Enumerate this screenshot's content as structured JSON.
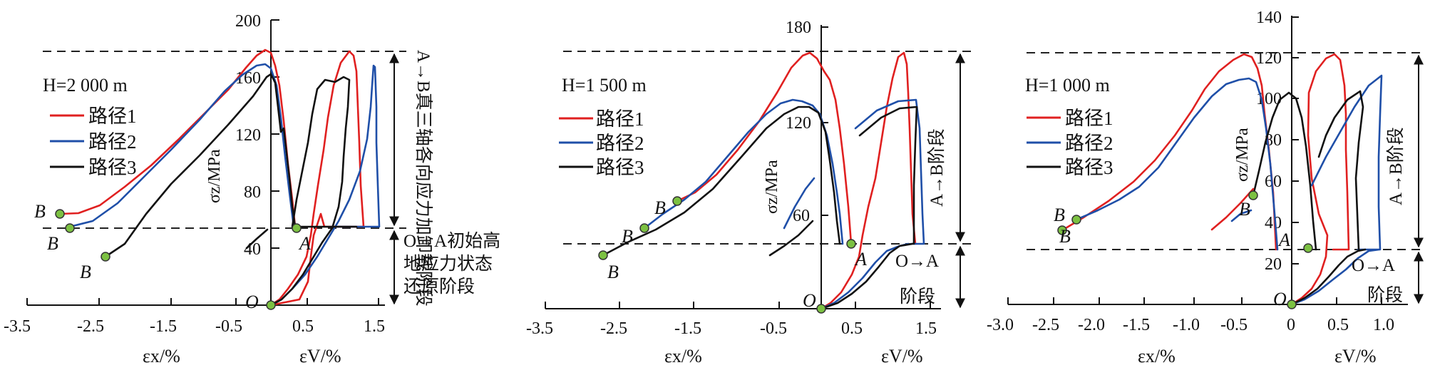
{
  "colors": {
    "path1": "#e02020",
    "path2": "#1f4fa8",
    "path3": "#111111",
    "point": "#7cc142"
  },
  "legend_labels": [
    "路径1",
    "路径2",
    "路径3"
  ],
  "units": {
    "x_left": "εx/%",
    "x_right": "εV/%",
    "y": "σz/MPa"
  },
  "chart_data": [
    {
      "type": "line",
      "depth_label": "H=2 000 m",
      "x_ticks": [
        "-3.5",
        "-2.5",
        "-1.5",
        "-0.5",
        "0.5",
        "1.5"
      ],
      "y_ticks": [
        "200",
        "160",
        "120",
        "80",
        "40"
      ],
      "ylim": [
        0,
        200
      ],
      "origin_label": "O",
      "annotation_upper": "A→B真三轴各向应力加卸载阶段",
      "annotation_lower": [
        "O→A初始高",
        "地应力状态",
        "还原阶段"
      ],
      "point_labels": [
        "B",
        "B",
        "B",
        "A"
      ],
      "series": [
        {
          "name": "路径1",
          "peak_stress": 181,
          "residual_x": -3.0,
          "residual_stress": 64
        },
        {
          "name": "路径2",
          "peak_stress": 171,
          "residual_x": -2.9,
          "residual_stress": 52
        },
        {
          "name": "路径3",
          "peak_stress": 160,
          "residual_x": -2.4,
          "residual_stress": 33
        }
      ]
    },
    {
      "type": "line",
      "depth_label": "H=1 500 m",
      "x_ticks": [
        "-3.5",
        "-2.5",
        "-1.5",
        "-0.5",
        "0.5",
        "1.5"
      ],
      "y_ticks": [
        "180",
        "120",
        "60"
      ],
      "ylim": [
        0,
        180
      ],
      "origin_label": "O",
      "annotation_upper": "A→B阶段",
      "annotation_lower": [
        "O→A",
        "阶段"
      ],
      "point_labels": [
        "B",
        "B",
        "B",
        "A"
      ],
      "series": [
        {
          "name": "路径1",
          "peak_stress": 161,
          "residual_x": -1.9,
          "residual_stress": 70
        },
        {
          "name": "路径2",
          "peak_stress": 136,
          "residual_x": -2.3,
          "residual_stress": 58
        },
        {
          "name": "路径3",
          "peak_stress": 130,
          "residual_x": -2.9,
          "residual_stress": 35
        }
      ]
    },
    {
      "type": "line",
      "depth_label": "H=1 000 m",
      "x_ticks": [
        "-3.0",
        "-2.5",
        "-2.0",
        "-1.5",
        "-1.0",
        "-0.5",
        "0",
        "0.5",
        "1.0"
      ],
      "y_ticks": [
        "140",
        "120",
        "100",
        "80",
        "60",
        "40",
        "20"
      ],
      "ylim": [
        0,
        140
      ],
      "origin_label": "O",
      "annotation_upper": "A→B阶段",
      "annotation_lower": [
        "O→A",
        "阶段"
      ],
      "point_labels": [
        "B",
        "B",
        "B",
        "A"
      ],
      "series": [
        {
          "name": "路径1",
          "peak_stress": 122,
          "residual_x": -0.9,
          "residual_stress": 36
        },
        {
          "name": "路径2",
          "peak_stress": 112,
          "residual_x": -2.4,
          "residual_stress": 42
        },
        {
          "name": "路径3",
          "peak_stress": 104,
          "residual_x": -0.3,
          "residual_stress": 53
        }
      ]
    }
  ]
}
